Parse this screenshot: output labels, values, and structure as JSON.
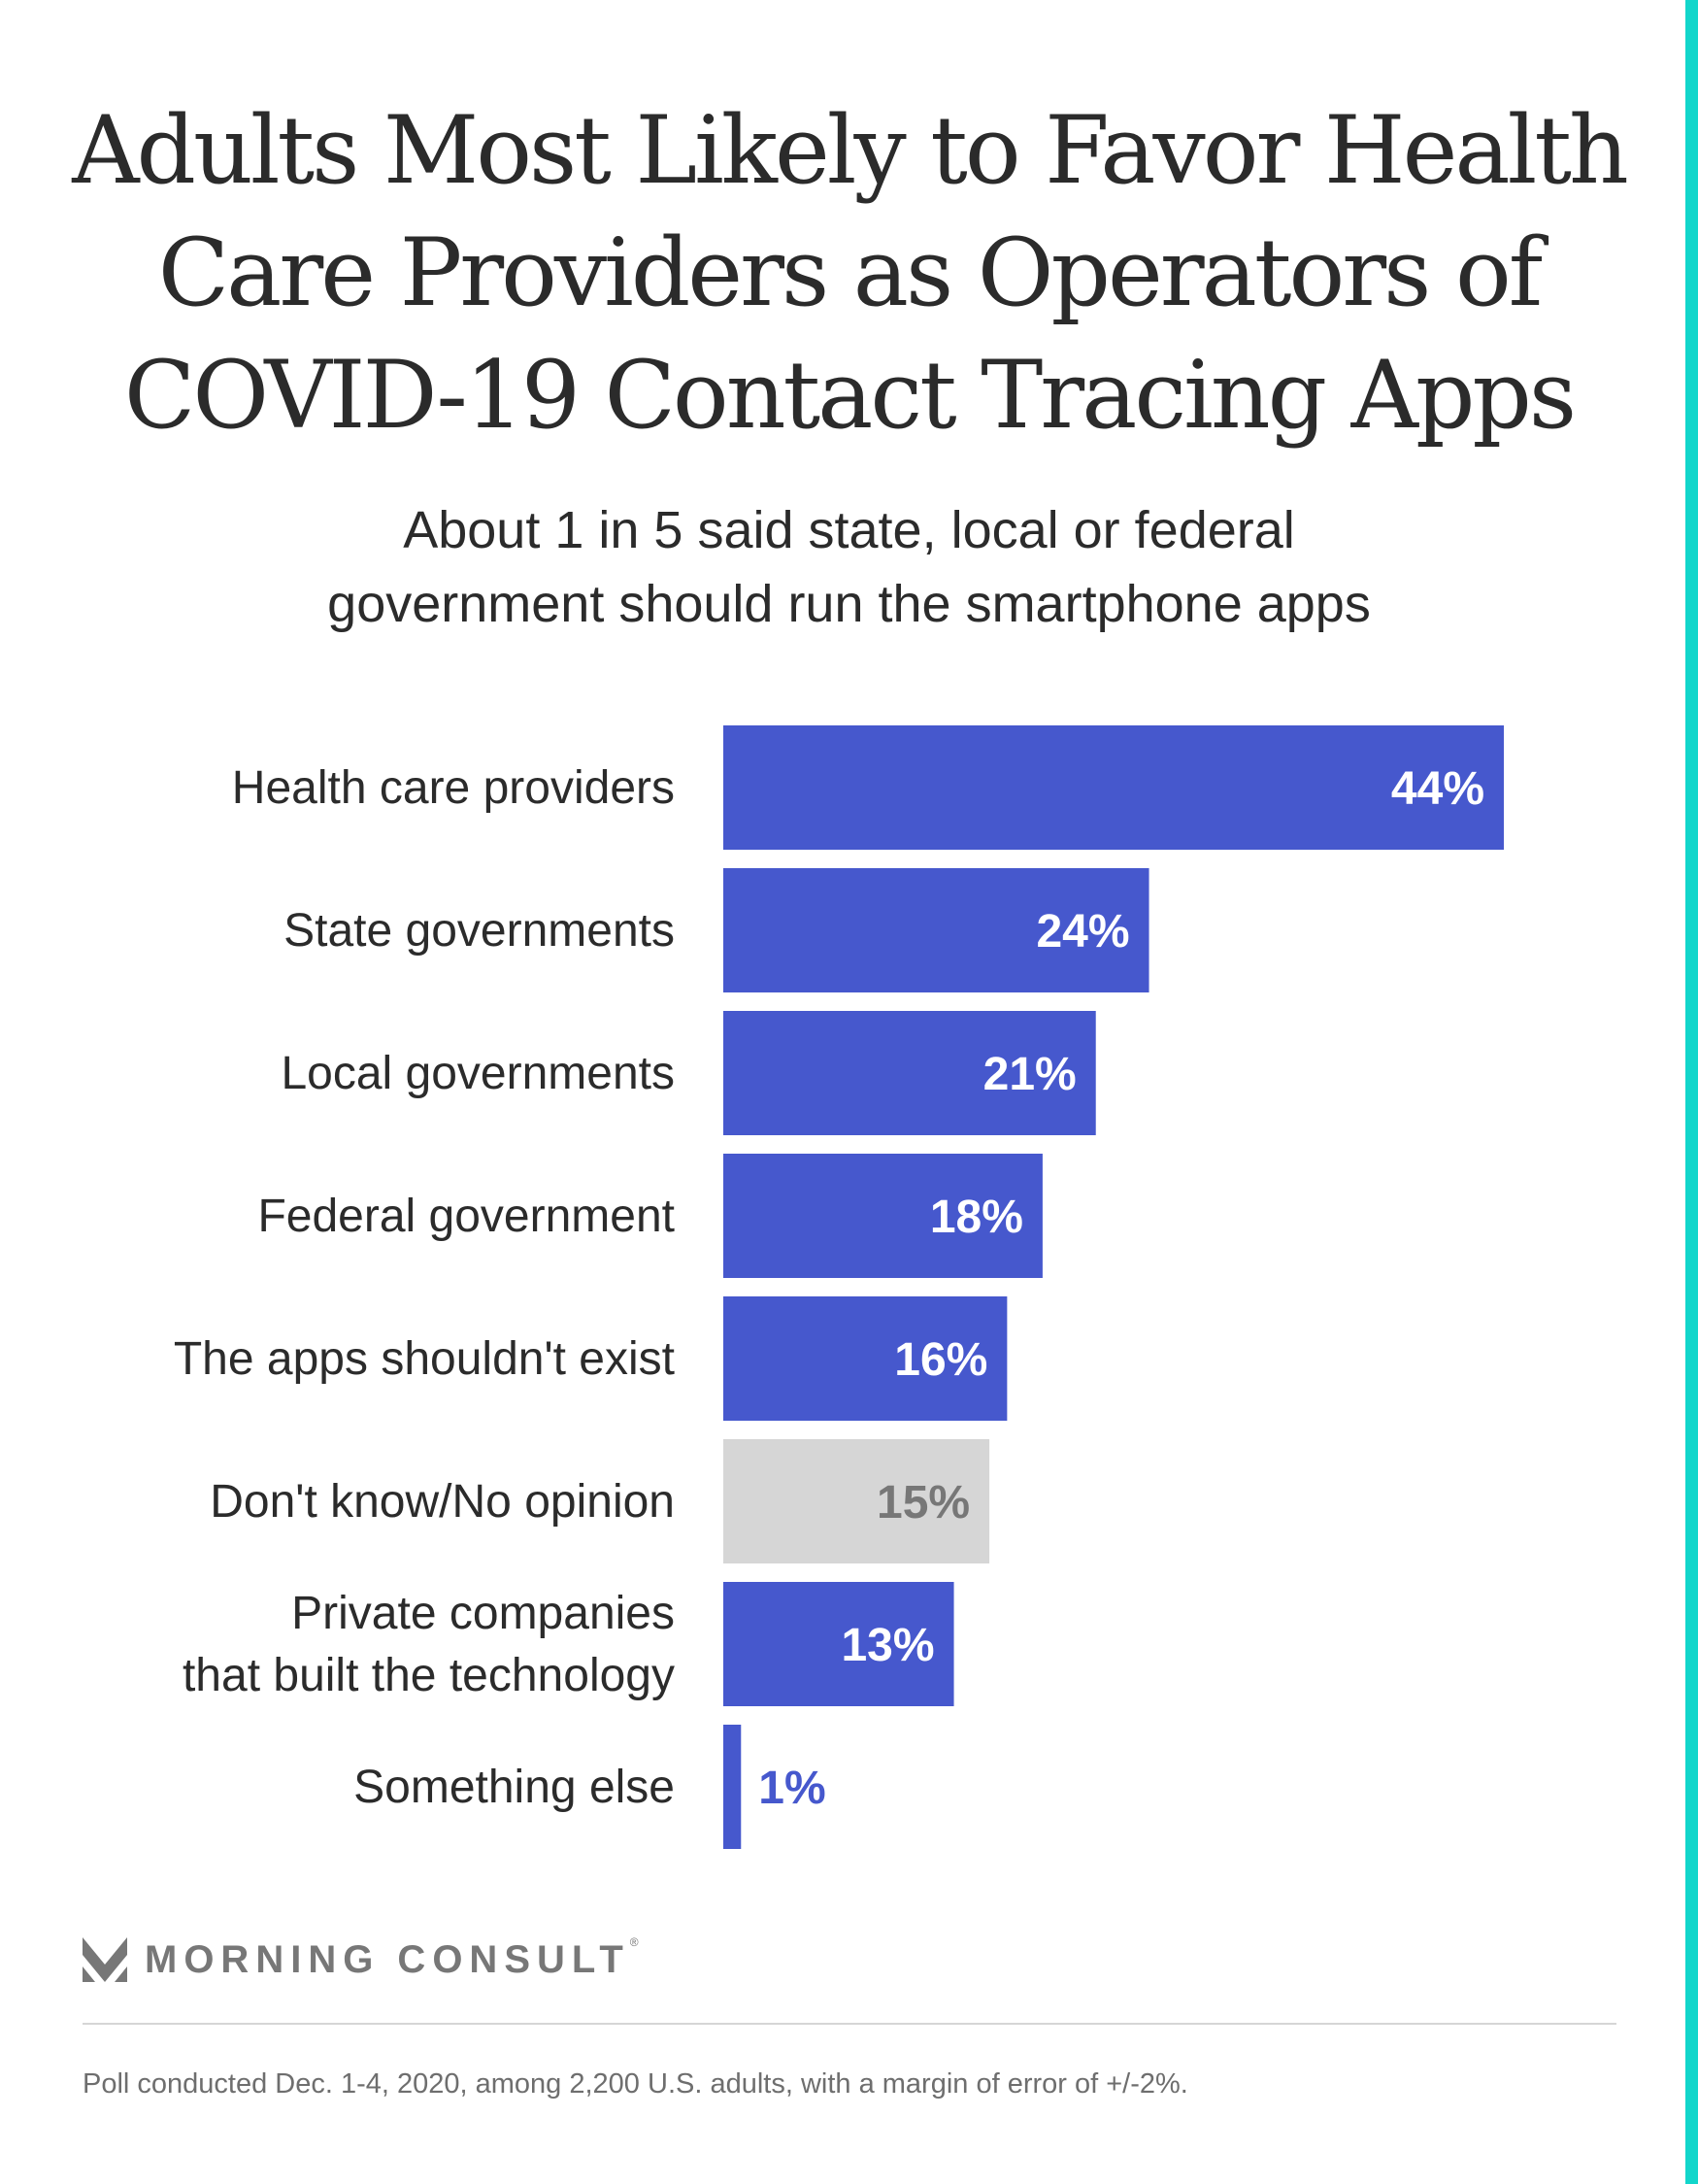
{
  "colors": {
    "accent": "#12d6cb",
    "bar": "#4658cd",
    "bar_neutral": "#d6d6d6",
    "label_neutral": "#777777",
    "text": "#2b2b2b"
  },
  "header": {
    "title_lines": [
      "Adults Most Likely to Favor Health",
      "Care Providers as Operators of",
      "COVID-19 Contact Tracing Apps"
    ],
    "subtitle_lines": [
      "About 1 in 5 said state, local or federal",
      "government should run the smartphone apps"
    ]
  },
  "chart_data": {
    "type": "bar",
    "orientation": "horizontal",
    "title": "Adults Most Likely to Favor Health Care Providers as Operators of COVID-19 Contact Tracing Apps",
    "subtitle": "About 1 in 5 said state, local or federal government should run the smartphone apps",
    "xlabel": "",
    "ylabel": "",
    "xlim": [
      0,
      44
    ],
    "grid": false,
    "categories": [
      [
        "Health care providers"
      ],
      [
        "State governments"
      ],
      [
        "Local governments"
      ],
      [
        "Federal government"
      ],
      [
        "The apps shouldn't exist"
      ],
      [
        "Don't know/No opinion"
      ],
      [
        "Private companies",
        "that built the technology"
      ],
      [
        "Something else"
      ]
    ],
    "values": [
      44,
      24,
      21,
      18,
      16,
      15,
      13,
      1
    ],
    "value_labels": [
      "44%",
      "24%",
      "21%",
      "18%",
      "16%",
      "15%",
      "13%",
      "1%"
    ],
    "neutral_index": 5
  },
  "brand": {
    "name": "MORNING CONSULT",
    "mark": "®",
    "icon": "morning-consult-logo-icon"
  },
  "footnote": "Poll conducted Dec. 1-4, 2020, among 2,200 U.S. adults, with a margin of error of +/-2%."
}
